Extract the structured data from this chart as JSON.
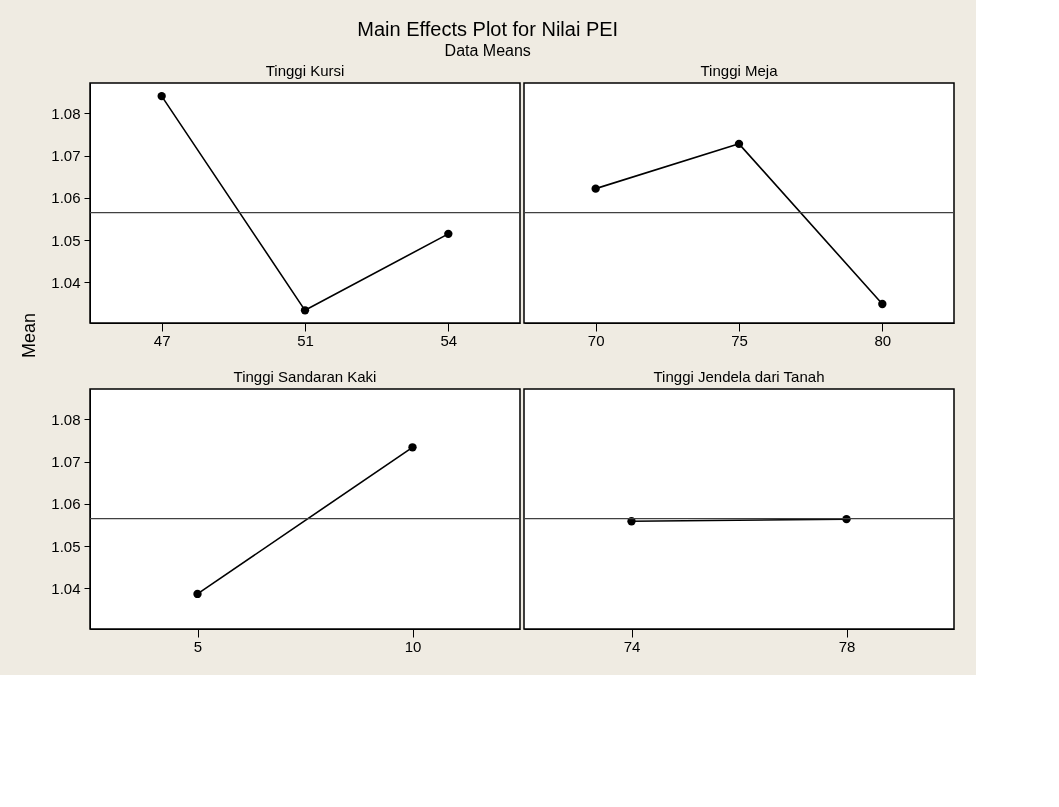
{
  "chart_data": [
    {
      "type": "line",
      "title": "Main Effects Plot for Nilai PEI",
      "subtitle": "Data Means",
      "ylabel": "Mean",
      "legend_title": "Tinggi Kursi",
      "categories": [
        "47",
        "51",
        "54"
      ],
      "series": [
        {
          "color": "#000000",
          "values": [
            1.0841,
            1.0334,
            1.0515
          ]
        }
      ],
      "ylim": [
        1.0304,
        1.0872
      ],
      "yticks": [
        1.04,
        1.05,
        1.06,
        1.07,
        1.08
      ],
      "ref_lines": [
        {
          "axis": "y",
          "value": 1.0565,
          "color": "#404040"
        }
      ],
      "marker": "circle",
      "grid": false
    },
    {
      "type": "line",
      "legend_title": "Tinggi Meja",
      "categories": [
        "70",
        "75",
        "80"
      ],
      "series": [
        {
          "color": "#000000",
          "values": [
            1.0622,
            1.0728,
            1.0349
          ]
        }
      ],
      "ylim": [
        1.0304,
        1.0872
      ],
      "ref_lines": [
        {
          "axis": "y",
          "value": 1.0565,
          "color": "#404040"
        }
      ],
      "marker": "circle",
      "grid": false,
      "tick_labels": "x"
    },
    {
      "type": "line",
      "legend_title": "Tinggi Sandaran Kaki",
      "categories": [
        "5",
        "10"
      ],
      "series": [
        {
          "color": "#000000",
          "values": [
            1.0387,
            1.0734
          ]
        }
      ],
      "ylim": [
        1.0304,
        1.0872
      ],
      "yticks": [
        1.04,
        1.05,
        1.06,
        1.07,
        1.08
      ],
      "ref_lines": [
        {
          "axis": "y",
          "value": 1.0565,
          "color": "#404040"
        }
      ],
      "marker": "circle",
      "grid": false
    },
    {
      "type": "line",
      "legend_title": "Tinggi Jendela dari Tanah",
      "categories": [
        "74",
        "78"
      ],
      "series": [
        {
          "color": "#000000",
          "values": [
            1.0559,
            1.0564
          ]
        }
      ],
      "ylim": [
        1.0304,
        1.0872
      ],
      "ref_lines": [
        {
          "axis": "y",
          "value": 1.0565,
          "color": "#404040"
        }
      ],
      "marker": "circle",
      "grid": false,
      "tick_labels": "x"
    }
  ]
}
